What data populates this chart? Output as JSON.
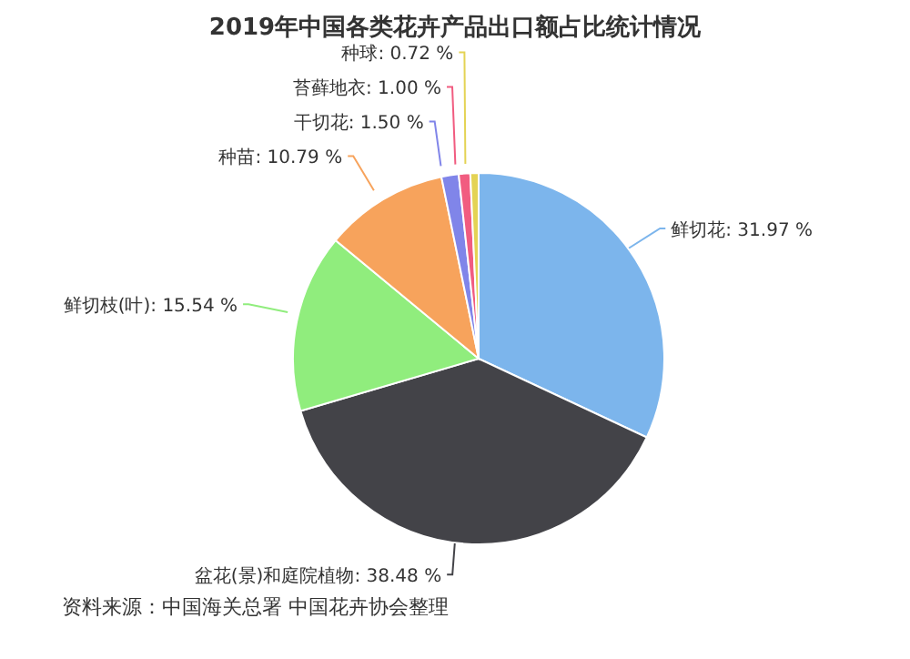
{
  "chart_data": {
    "type": "pie",
    "title": "2019年中国各类花卉产品出口额占比统计情况",
    "categories": [
      "鲜切花",
      "盆花(景)和庭院植物",
      "鲜切枝(叶)",
      "种苗",
      "干切花",
      "苔藓地衣",
      "种球"
    ],
    "values": [
      31.97,
      38.48,
      15.54,
      10.79,
      1.5,
      1.0,
      0.72
    ],
    "value_labels": [
      "31.97 %",
      "38.48 %",
      "15.54 %",
      "10.79 %",
      "1.50 %",
      "1.00 %",
      "0.72 %"
    ],
    "colors": [
      "#7cb5ec",
      "#434348",
      "#90ed7d",
      "#f7a35c",
      "#8085e9",
      "#f15c80",
      "#e4d354"
    ],
    "annotations": [
      "资料来源：中国海关总署 中国花卉协会整理"
    ],
    "legend": false
  }
}
